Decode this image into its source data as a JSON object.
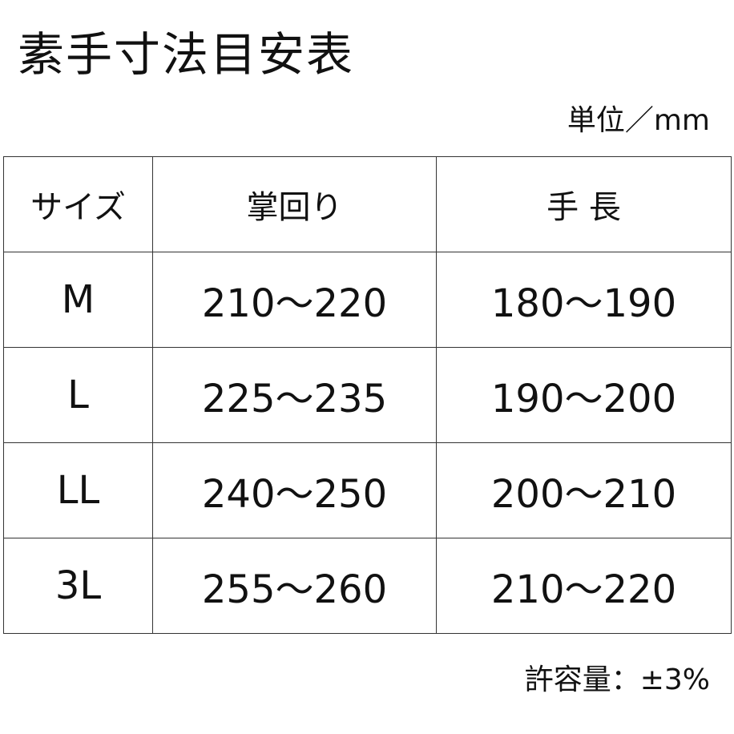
{
  "title": "素手寸法目安表",
  "unit": "単位／mm",
  "table": {
    "headers": [
      "サイズ",
      "掌回り",
      "手 長"
    ],
    "rows": [
      [
        "M",
        "210～220",
        "180～190"
      ],
      [
        "L",
        "225～235",
        "190～200"
      ],
      [
        "LL",
        "240～250",
        "200～210"
      ],
      [
        "3L",
        "255～260",
        "210～220"
      ]
    ]
  },
  "tolerance": "許容量：±3%"
}
